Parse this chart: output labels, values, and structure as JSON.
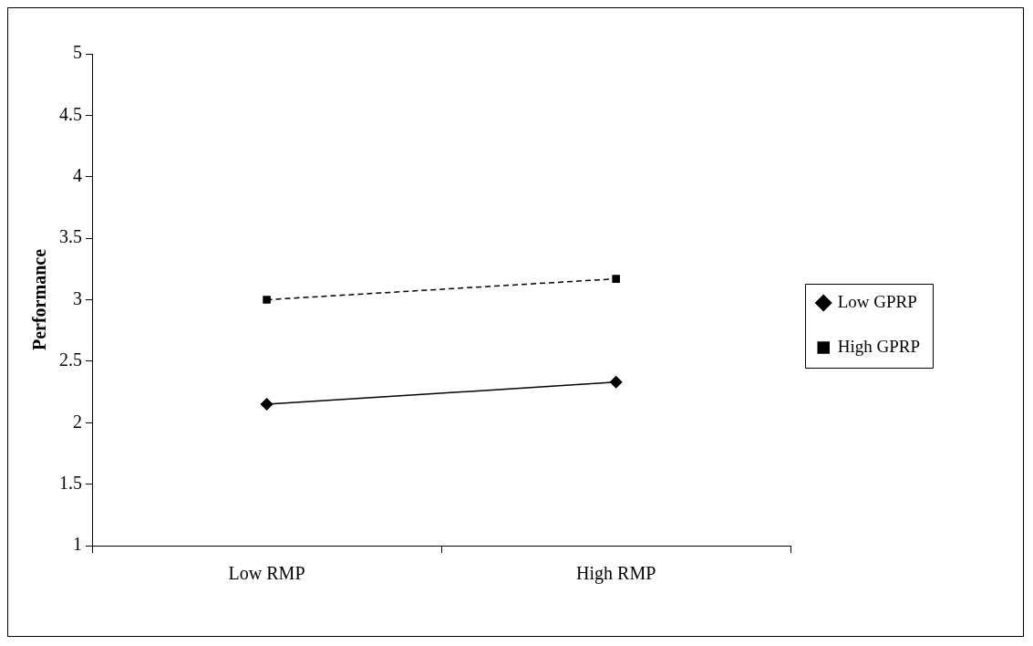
{
  "chart_data": {
    "type": "line",
    "ylabel": "Performance",
    "categories": [
      "Low RMP",
      "High RMP"
    ],
    "series": [
      {
        "name": "Low GPRP",
        "color": "#000000",
        "values": [
          2.15,
          2.33
        ],
        "marker": "diamond",
        "line_style": "solid"
      },
      {
        "name": "High GPRP",
        "color": "#000000",
        "values": [
          3.0,
          3.17
        ],
        "marker": "square",
        "line_style": "dashed"
      }
    ],
    "ylim": [
      1,
      5
    ],
    "yticks": [
      1,
      1.5,
      2,
      2.5,
      3,
      3.5,
      4,
      4.5,
      5
    ],
    "legend": "right"
  }
}
